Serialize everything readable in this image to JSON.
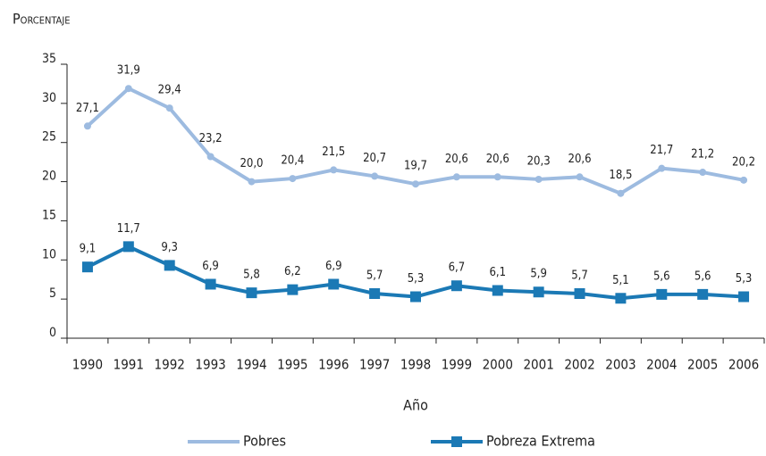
{
  "chart_data": {
    "type": "line",
    "ylabel": "Porcentaje",
    "xlabel": "Año",
    "categories": [
      "1990",
      "1991",
      "1992",
      "1993",
      "1994",
      "1995",
      "1996",
      "1997",
      "1998",
      "1999",
      "2000",
      "2001",
      "2002",
      "2003",
      "2004",
      "2005",
      "2006"
    ],
    "series": [
      {
        "name": "Pobres",
        "color": "#9dbbe0",
        "marker": "circle",
        "values": [
          27.1,
          31.9,
          29.4,
          23.2,
          20.0,
          20.4,
          21.5,
          20.7,
          19.7,
          20.6,
          20.6,
          20.3,
          20.6,
          18.5,
          21.7,
          21.2,
          20.2
        ],
        "value_labels": [
          "27,1",
          "31,9",
          "29,4",
          "23,2",
          "20,0",
          "20,4",
          "21,5",
          "20,7",
          "19,7",
          "20,6",
          "20,6",
          "20,3",
          "20,6",
          "18,5",
          "21,7",
          "21,2",
          "20,2"
        ]
      },
      {
        "name": "Pobreza Extrema",
        "color": "#1b79b5",
        "marker": "square",
        "values": [
          9.1,
          11.7,
          9.3,
          6.9,
          5.8,
          6.2,
          6.9,
          5.7,
          5.3,
          6.7,
          6.1,
          5.9,
          5.7,
          5.1,
          5.6,
          5.6,
          5.3
        ],
        "value_labels": [
          "9,1",
          "11,7",
          "9,3",
          "6,9",
          "5,8",
          "6,2",
          "6,9",
          "5,7",
          "5,3",
          "6,7",
          "6,1",
          "5,9",
          "5,7",
          "5,1",
          "5,6",
          "5,6",
          "5,3"
        ]
      }
    ],
    "ylim": [
      0,
      35
    ],
    "yticks": [
      0,
      5,
      10,
      15,
      20,
      25,
      30,
      35
    ],
    "grid": false,
    "legend": "bottom"
  }
}
